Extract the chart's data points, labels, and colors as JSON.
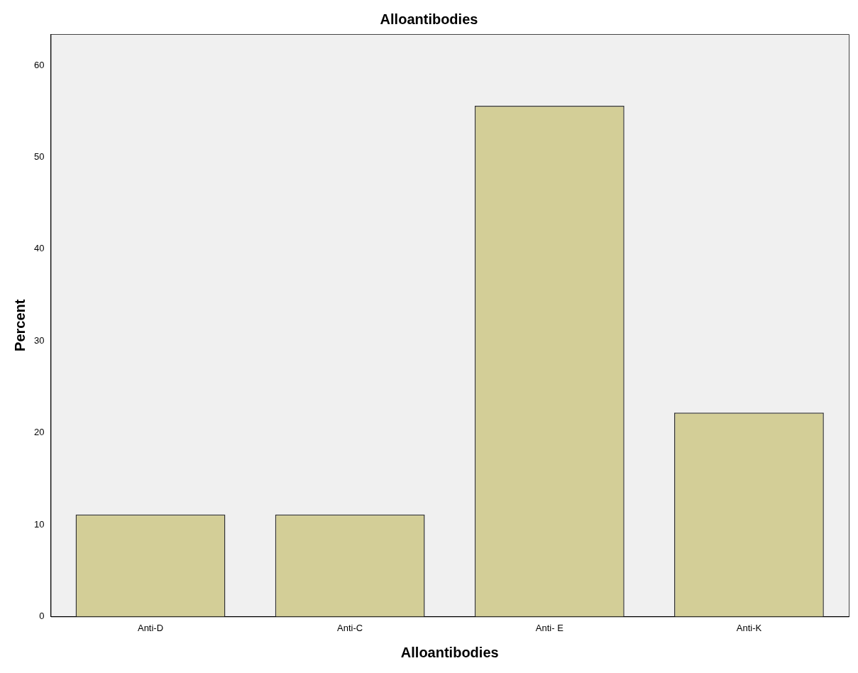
{
  "chart_data": {
    "type": "bar",
    "title": "Alloantibodies",
    "xlabel": "Alloantibodies",
    "ylabel": "Percent",
    "categories": [
      "Anti-D",
      "Anti-C",
      "Anti- E",
      "Anti-K"
    ],
    "values": [
      11.1,
      11.1,
      55.6,
      22.2
    ],
    "color": "#d3ce97",
    "ylim": [
      0,
      63.4
    ],
    "yticks": [
      0,
      10,
      20,
      30,
      40,
      50,
      60
    ],
    "grid": false,
    "legend": false
  }
}
